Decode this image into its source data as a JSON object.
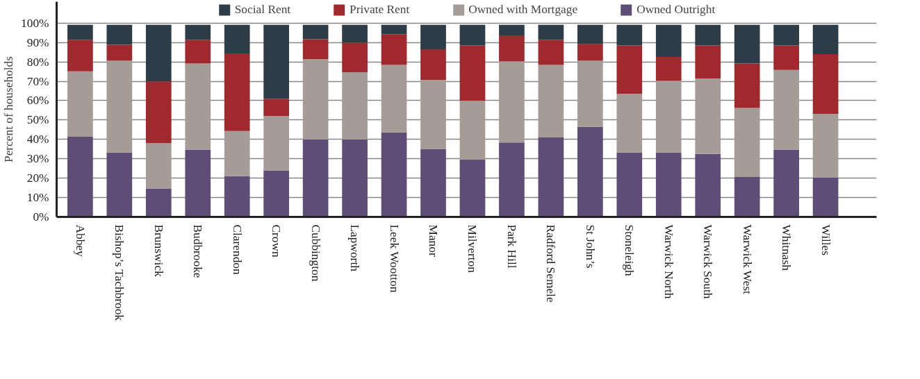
{
  "chart_data": {
    "type": "bar",
    "stacked": true,
    "ylabel": "Percent of households",
    "categories": [
      "Abbey",
      "Bishop’s Tachbrook",
      "Brunswick",
      "Budbrooke",
      "Clarendon",
      "Crown",
      "Cubbington",
      "Lapworth",
      "Leek Wootton",
      "Manor",
      "Milverton",
      "Park Hill",
      "Radford Semele",
      "St John’s",
      "Stoneleigh",
      "Warwick North",
      "Warwick South",
      "Warwick West",
      "Whitnash",
      "Willes"
    ],
    "series": [
      {
        "name": "Owned Outright",
        "color": "#5e4d77",
        "values": [
          41.4,
          33.2,
          14.7,
          34.7,
          21.0,
          24.0,
          39.9,
          39.9,
          43.6,
          35.1,
          29.5,
          38.4,
          41.0,
          46.5,
          33.2,
          33.2,
          32.5,
          20.6,
          34.7,
          20.2
        ]
      },
      {
        "name": "Owned with Mortgage",
        "color": "#a59c97",
        "values": [
          33.7,
          47.4,
          23.3,
          44.4,
          23.3,
          28.1,
          41.5,
          34.8,
          34.8,
          35.5,
          30.4,
          41.8,
          37.4,
          34.1,
          30.4,
          37.0,
          38.9,
          35.6,
          41.1,
          33.0
        ]
      },
      {
        "name": "Private Rent",
        "color": "#a0292e",
        "values": [
          16.3,
          8.2,
          31.9,
          12.3,
          40.0,
          8.9,
          10.3,
          15.2,
          15.9,
          15.9,
          28.5,
          13.4,
          13.0,
          8.5,
          24.8,
          12.3,
          17.0,
          22.9,
          12.6,
          30.8
        ]
      },
      {
        "name": "Social Rent",
        "color": "#2e3c47",
        "values": [
          7.7,
          10.3,
          29.2,
          7.7,
          14.8,
          38.1,
          7.4,
          9.2,
          4.8,
          12.6,
          10.7,
          5.5,
          7.7,
          10.0,
          10.7,
          16.6,
          10.7,
          20.0,
          10.7,
          15.1
        ]
      }
    ],
    "ylim": [
      0,
      111
    ],
    "yticks": [
      {
        "value": 0,
        "label": "0%"
      },
      {
        "value": 10,
        "label": "10%"
      },
      {
        "value": 20,
        "label": "20%"
      },
      {
        "value": 30,
        "label": "30%"
      },
      {
        "value": 40,
        "label": "40%"
      },
      {
        "value": 50,
        "label": "50%"
      },
      {
        "value": 60,
        "label": "60%"
      },
      {
        "value": 70,
        "label": "70%"
      },
      {
        "value": 80,
        "label": "80%"
      },
      {
        "value": 90,
        "label": "90%"
      },
      {
        "value": 100,
        "label": "100%"
      }
    ],
    "grid": "y",
    "legend": "top"
  }
}
